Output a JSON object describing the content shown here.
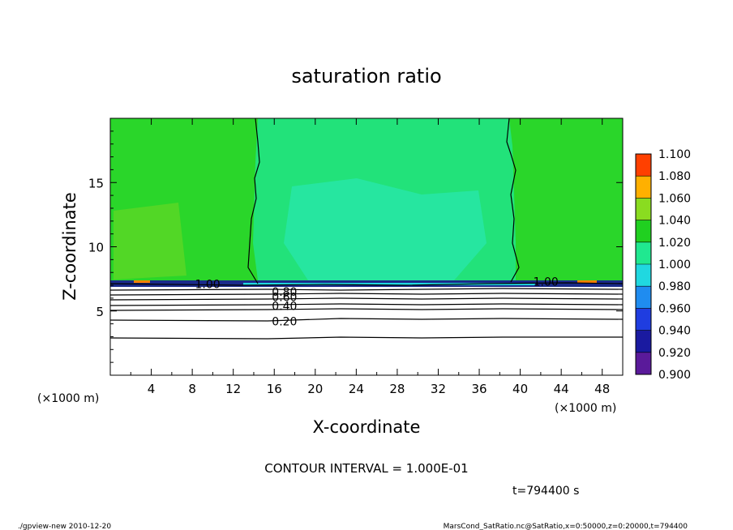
{
  "chart_data": {
    "type": "contour",
    "title": "saturation ratio",
    "xlabel": "X-coordinate",
    "ylabel": "Z-coordinate",
    "x_unit_label": "(×1000 m)",
    "y_unit_label": "(×1000 m)",
    "xlim": [
      0,
      50
    ],
    "ylim": [
      0,
      20
    ],
    "x_ticks": [
      4,
      8,
      12,
      16,
      20,
      24,
      28,
      32,
      36,
      40,
      44,
      48
    ],
    "y_ticks": [
      5,
      10,
      15
    ],
    "colorbar": {
      "levels": [
        0.9,
        0.92,
        0.94,
        0.96,
        0.98,
        1.0,
        1.02,
        1.04,
        1.06,
        1.08,
        1.1
      ],
      "labels": [
        "0.900",
        "0.920",
        "0.940",
        "0.960",
        "0.980",
        "1.000",
        "1.020",
        "1.040",
        "1.060",
        "1.080",
        "1.100"
      ],
      "colors": [
        "#5a1a9a",
        "#1a1aa0",
        "#1f3de0",
        "#1f8cf0",
        "#20d8e0",
        "#20e890",
        "#20d020",
        "#8adc20",
        "#ffb000",
        "#ff4000",
        "#ff8888"
      ]
    },
    "contour_labels": [
      {
        "text": "1.00",
        "x": 9.5,
        "z": 7.1
      },
      {
        "text": "0.80",
        "x": 17.0,
        "z": 6.5
      },
      {
        "text": "0.60",
        "x": 17.0,
        "z": 6.1
      },
      {
        "text": "0.40",
        "x": 17.0,
        "z": 5.4
      },
      {
        "text": "0.20",
        "x": 17.0,
        "z": 4.2
      },
      {
        "text": "1.00",
        "x": 42.5,
        "z": 7.3
      }
    ],
    "contour_interval_text": "CONTOUR INTERVAL = 1.000E-01",
    "time_label": "t=794400 s"
  },
  "footer": {
    "left": "./gpview-new  2010-12-20",
    "right": "MarsCond_SatRatio.nc@SatRatio,x=0:50000,z=0:20000,t=794400"
  }
}
